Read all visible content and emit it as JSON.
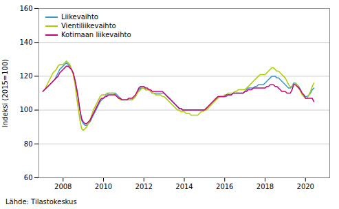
{
  "chart_data": {
    "type": "line",
    "ylabel": "Indeksi (2015=100)",
    "caption": "Lähde: Tilastokeskus",
    "ylim": [
      60,
      160
    ],
    "yticks": [
      60,
      80,
      100,
      120,
      140,
      160
    ],
    "xlim": [
      2006.8,
      2021.2
    ],
    "xticks": [
      2008,
      2010,
      2012,
      2014,
      2016,
      2018,
      2020
    ],
    "grid": true,
    "legend": "upper left",
    "x": [
      2007,
      2007.0833333,
      2007.1666667,
      2007.25,
      2007.3333333,
      2007.4166667,
      2007.5,
      2007.5833333,
      2007.6666667,
      2007.75,
      2007.8333333,
      2007.9166667,
      2008,
      2008.0833333,
      2008.1666667,
      2008.25,
      2008.3333333,
      2008.4166667,
      2008.5,
      2008.5833333,
      2008.6666667,
      2008.75,
      2008.8333333,
      2008.9166667,
      2009,
      2009.0833333,
      2009.1666667,
      2009.25,
      2009.3333333,
      2009.4166667,
      2009.5,
      2009.5833333,
      2009.6666667,
      2009.75,
      2009.8333333,
      2009.9166667,
      2010,
      2010.0833333,
      2010.1666667,
      2010.25,
      2010.3333333,
      2010.4166667,
      2010.5,
      2010.5833333,
      2010.6666667,
      2010.75,
      2010.8333333,
      2010.9166667,
      2011,
      2011.0833333,
      2011.1666667,
      2011.25,
      2011.3333333,
      2011.4166667,
      2011.5,
      2011.5833333,
      2011.6666667,
      2011.75,
      2011.8333333,
      2011.9166667,
      2012,
      2012.0833333,
      2012.1666667,
      2012.25,
      2012.3333333,
      2012.4166667,
      2012.5,
      2012.5833333,
      2012.6666667,
      2012.75,
      2012.8333333,
      2012.9166667,
      2013,
      2013.0833333,
      2013.1666667,
      2013.25,
      2013.3333333,
      2013.4166667,
      2013.5,
      2013.5833333,
      2013.6666667,
      2013.75,
      2013.8333333,
      2013.9166667,
      2014,
      2014.0833333,
      2014.1666667,
      2014.25,
      2014.3333333,
      2014.4166667,
      2014.5,
      2014.5833333,
      2014.6666667,
      2014.75,
      2014.8333333,
      2014.9166667,
      2015,
      2015.0833333,
      2015.1666667,
      2015.25,
      2015.3333333,
      2015.4166667,
      2015.5,
      2015.5833333,
      2015.6666667,
      2015.75,
      2015.8333333,
      2015.9166667,
      2016,
      2016.0833333,
      2016.1666667,
      2016.25,
      2016.3333333,
      2016.4166667,
      2016.5,
      2016.5833333,
      2016.6666667,
      2016.75,
      2016.8333333,
      2016.9166667,
      2017,
      2017.0833333,
      2017.1666667,
      2017.25,
      2017.3333333,
      2017.4166667,
      2017.5,
      2017.5833333,
      2017.6666667,
      2017.75,
      2017.8333333,
      2017.9166667,
      2018,
      2018.0833333,
      2018.1666667,
      2018.25,
      2018.3333333,
      2018.4166667,
      2018.5,
      2018.5833333,
      2018.6666667,
      2018.75,
      2018.8333333,
      2018.9166667,
      2019,
      2019.0833333,
      2019.1666667,
      2019.25,
      2019.3333333,
      2019.4166667,
      2019.5,
      2019.5833333,
      2019.6666667,
      2019.75,
      2019.8333333,
      2019.9166667,
      2020,
      2020.0833333,
      2020.1666667,
      2020.25,
      2020.3333333,
      2020.4166667
    ],
    "series": [
      {
        "name": "Liikevaihto",
        "color": "#3399cc",
        "values": [
          111.0,
          112.0,
          113.0,
          114.0,
          115.0,
          116.0,
          117.0,
          118.0,
          120.0,
          122.0,
          124.0,
          125.0,
          126.0,
          127.0,
          128.0,
          127.0,
          126.0,
          124.0,
          122.0,
          118.0,
          113.0,
          107.0,
          100.0,
          94.0,
          92.0,
          91.0,
          91.0,
          92.0,
          93.0,
          95.0,
          97.0,
          99.0,
          101.0,
          103.0,
          105.0,
          106.0,
          107.0,
          108.0,
          109.0,
          110.0,
          110.0,
          110.0,
          110.0,
          110.0,
          109.0,
          108.0,
          107.0,
          106.0,
          106.0,
          106.0,
          106.0,
          106.0,
          106.0,
          106.0,
          107.0,
          108.0,
          110.0,
          112.0,
          113.0,
          113.0,
          113.0,
          112.0,
          112.0,
          112.0,
          111.0,
          110.0,
          110.0,
          110.0,
          110.0,
          110.0,
          110.0,
          110.0,
          110.0,
          109.0,
          108.0,
          107.0,
          106.0,
          105.0,
          104.0,
          103.0,
          102.0,
          101.0,
          101.0,
          100.0,
          100.0,
          100.0,
          100.0,
          100.0,
          100.0,
          100.0,
          100.0,
          100.0,
          100.0,
          100.0,
          100.0,
          100.0,
          100.0,
          101.0,
          102.0,
          103.0,
          104.0,
          105.0,
          106.0,
          107.0,
          108.0,
          108.0,
          108.0,
          108.0,
          108.0,
          108.0,
          109.0,
          109.0,
          109.0,
          110.0,
          110.0,
          110.0,
          110.0,
          110.0,
          110.0,
          110.0,
          111.0,
          112.0,
          113.0,
          113.0,
          113.0,
          113.0,
          114.0,
          114.0,
          115.0,
          115.0,
          115.0,
          115.0,
          116.0,
          117.0,
          118.0,
          119.0,
          120.0,
          120.0,
          120.0,
          119.0,
          119.0,
          118.0,
          117.0,
          116.0,
          115.0,
          114.0,
          113.0,
          113.0,
          114.0,
          116.0,
          116.0,
          115.0,
          114.0,
          112.0,
          110.0,
          109.0,
          108.0,
          108.0,
          109.0,
          110.0,
          112.0,
          113.0
        ]
      },
      {
        "name": "Vientiliikevaihto",
        "color": "#aacc00",
        "values": [
          111.0,
          112.0,
          114.0,
          116.0,
          118.0,
          120.0,
          122.0,
          123.0,
          124.0,
          126.0,
          127.0,
          127.0,
          127.0,
          128.0,
          129.0,
          128.0,
          127.0,
          124.0,
          121.0,
          116.0,
          108.0,
          101.0,
          94.0,
          89.0,
          88.0,
          89.0,
          90.0,
          92.0,
          94.0,
          97.0,
          100.0,
          102.0,
          104.0,
          106.0,
          108.0,
          109.0,
          109.0,
          109.0,
          110.0,
          110.0,
          110.0,
          110.0,
          110.0,
          109.0,
          108.0,
          107.0,
          106.0,
          106.0,
          106.0,
          106.0,
          106.0,
          106.0,
          106.0,
          106.0,
          107.0,
          108.0,
          110.0,
          111.0,
          112.0,
          113.0,
          113.0,
          112.0,
          112.0,
          112.0,
          111.0,
          110.0,
          110.0,
          109.0,
          109.0,
          109.0,
          109.0,
          108.0,
          108.0,
          107.0,
          106.0,
          105.0,
          104.0,
          103.0,
          102.0,
          101.0,
          100.0,
          100.0,
          99.0,
          99.0,
          99.0,
          98.0,
          98.0,
          98.0,
          97.0,
          97.0,
          97.0,
          97.0,
          97.0,
          98.0,
          99.0,
          99.0,
          100.0,
          100.0,
          101.0,
          102.0,
          103.0,
          104.0,
          105.0,
          106.0,
          107.0,
          108.0,
          108.0,
          108.0,
          109.0,
          109.0,
          110.0,
          110.0,
          110.0,
          110.0,
          111.0,
          111.0,
          112.0,
          112.0,
          112.0,
          112.0,
          112.0,
          113.0,
          114.0,
          115.0,
          116.0,
          117.0,
          118.0,
          119.0,
          120.0,
          121.0,
          121.0,
          121.0,
          121.0,
          122.0,
          123.0,
          124.0,
          125.0,
          125.0,
          124.0,
          123.0,
          123.0,
          122.0,
          121.0,
          120.0,
          119.0,
          117.0,
          115.0,
          114.0,
          114.0,
          115.0,
          116.0,
          115.0,
          113.0,
          111.0,
          109.0,
          108.0,
          107.0,
          107.0,
          109.0,
          111.0,
          114.0,
          116.0
        ]
      },
      {
        "name": "Kotimaan liikevaihto",
        "color": "#cc0077",
        "values": [
          111.0,
          112.0,
          113.0,
          114.0,
          115.0,
          116.0,
          117.0,
          118.0,
          119.0,
          120.0,
          122.0,
          123.0,
          124.0,
          125.0,
          126.0,
          126.0,
          125.0,
          124.0,
          122.0,
          118.0,
          113.0,
          107.0,
          100.0,
          95.0,
          93.0,
          92.0,
          92.0,
          93.0,
          94.0,
          96.0,
          98.0,
          100.0,
          102.0,
          104.0,
          106.0,
          107.0,
          107.0,
          108.0,
          108.0,
          109.0,
          109.0,
          109.0,
          109.0,
          109.0,
          108.0,
          107.0,
          107.0,
          106.0,
          106.0,
          106.0,
          106.0,
          107.0,
          107.0,
          107.0,
          108.0,
          109.0,
          111.0,
          113.0,
          114.0,
          114.0,
          114.0,
          113.0,
          113.0,
          112.0,
          112.0,
          111.0,
          111.0,
          111.0,
          111.0,
          111.0,
          111.0,
          111.0,
          110.0,
          109.0,
          108.0,
          107.0,
          106.0,
          105.0,
          104.0,
          103.0,
          102.0,
          101.0,
          101.0,
          100.0,
          100.0,
          100.0,
          100.0,
          100.0,
          100.0,
          100.0,
          100.0,
          100.0,
          100.0,
          100.0,
          100.0,
          100.0,
          100.0,
          101.0,
          102.0,
          103.0,
          104.0,
          105.0,
          106.0,
          107.0,
          108.0,
          108.0,
          108.0,
          108.0,
          108.0,
          109.0,
          109.0,
          109.0,
          109.0,
          110.0,
          110.0,
          110.0,
          110.0,
          110.0,
          110.0,
          110.0,
          111.0,
          111.0,
          112.0,
          112.0,
          112.0,
          113.0,
          113.0,
          113.0,
          113.0,
          113.0,
          113.0,
          113.0,
          113.0,
          114.0,
          114.0,
          115.0,
          115.0,
          115.0,
          114.0,
          114.0,
          113.0,
          112.0,
          111.0,
          111.0,
          111.0,
          110.0,
          110.0,
          110.0,
          112.0,
          115.0,
          115.0,
          114.0,
          113.0,
          112.0,
          110.0,
          109.0,
          107.0,
          107.0,
          107.0,
          107.0,
          107.0,
          105.0
        ]
      }
    ]
  }
}
